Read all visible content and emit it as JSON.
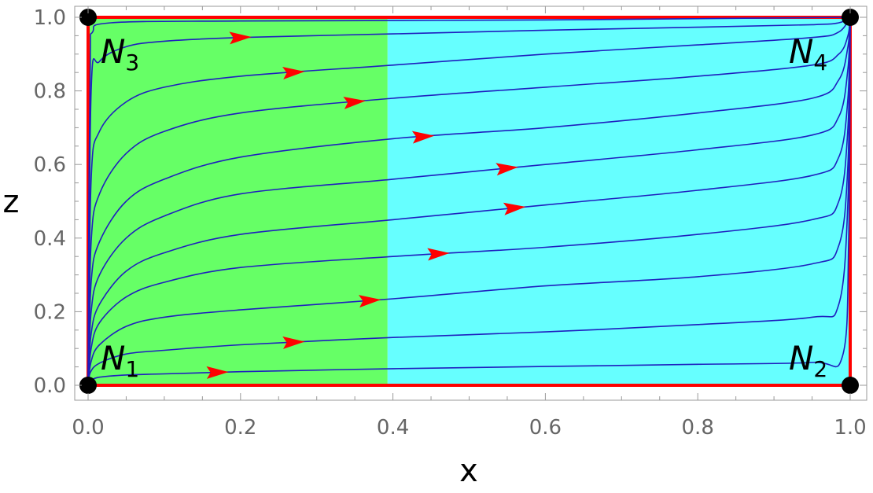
{
  "chart_data": {
    "type": "line",
    "title": "",
    "xlabel": "x",
    "ylabel": "z",
    "xlim": [
      0,
      1
    ],
    "ylim": [
      0,
      1
    ],
    "x_ticks": [
      "0.0",
      "0.2",
      "0.4",
      "0.6",
      "0.8",
      "1.0"
    ],
    "y_ticks": [
      "0.0",
      "0.2",
      "0.4",
      "0.6",
      "0.8",
      "1.0"
    ],
    "grid": false,
    "regions": [
      {
        "x_range": [
          0,
          0.393
        ],
        "color": "#66ff66"
      },
      {
        "x_range": [
          0.393,
          1
        ],
        "color": "#66ffff"
      }
    ],
    "boundary_color": "#ff0000",
    "trajectory_color": "#1f1fbf",
    "arrow_color": "#ff0000",
    "nodes": [
      {
        "name": "N",
        "sub": "1",
        "x": 0,
        "z": 0
      },
      {
        "name": "N",
        "sub": "2",
        "x": 1,
        "z": 0
      },
      {
        "name": "N",
        "sub": "3",
        "x": 0,
        "z": 1
      },
      {
        "name": "N",
        "sub": "4",
        "x": 1,
        "z": 1
      }
    ],
    "series": [
      {
        "values": [
          [
            0,
            0
          ],
          [
            0.003,
            0.012
          ],
          [
            0.015,
            0.022
          ],
          [
            0.05,
            0.028
          ],
          [
            0.1,
            0.031
          ],
          [
            0.2,
            0.037
          ],
          [
            0.4,
            0.045
          ],
          [
            0.6,
            0.051
          ],
          [
            0.8,
            0.057
          ],
          [
            0.95,
            0.062
          ],
          [
            0.99,
            0.08
          ],
          [
            0.998,
            0.4
          ],
          [
            1,
            1
          ]
        ],
        "arrow_x": 0.17
      },
      {
        "values": [
          [
            0,
            0
          ],
          [
            0.003,
            0.035
          ],
          [
            0.015,
            0.06
          ],
          [
            0.05,
            0.085
          ],
          [
            0.1,
            0.095
          ],
          [
            0.2,
            0.11
          ],
          [
            0.4,
            0.13
          ],
          [
            0.6,
            0.145
          ],
          [
            0.8,
            0.165
          ],
          [
            0.95,
            0.185
          ],
          [
            0.985,
            0.22
          ],
          [
            0.997,
            0.5
          ],
          [
            1,
            1
          ]
        ],
        "arrow_x": 0.27
      },
      {
        "values": [
          [
            0,
            0
          ],
          [
            0.004,
            0.065
          ],
          [
            0.015,
            0.11
          ],
          [
            0.05,
            0.16
          ],
          [
            0.1,
            0.185
          ],
          [
            0.2,
            0.205
          ],
          [
            0.4,
            0.235
          ],
          [
            0.6,
            0.27
          ],
          [
            0.8,
            0.295
          ],
          [
            0.95,
            0.33
          ],
          [
            0.985,
            0.38
          ],
          [
            0.997,
            0.6
          ],
          [
            1,
            1
          ]
        ],
        "arrow_x": 0.37
      },
      {
        "values": [
          [
            0,
            0
          ],
          [
            0.004,
            0.1
          ],
          [
            0.015,
            0.17
          ],
          [
            0.05,
            0.24
          ],
          [
            0.1,
            0.28
          ],
          [
            0.2,
            0.32
          ],
          [
            0.4,
            0.35
          ],
          [
            0.6,
            0.375
          ],
          [
            0.8,
            0.41
          ],
          [
            0.95,
            0.45
          ],
          [
            0.985,
            0.5
          ],
          [
            0.997,
            0.7
          ],
          [
            1,
            1
          ]
        ],
        "arrow_x": 0.46
      },
      {
        "values": [
          [
            0,
            0
          ],
          [
            0.004,
            0.14
          ],
          [
            0.015,
            0.22
          ],
          [
            0.05,
            0.31
          ],
          [
            0.1,
            0.36
          ],
          [
            0.2,
            0.41
          ],
          [
            0.4,
            0.45
          ],
          [
            0.6,
            0.49
          ],
          [
            0.8,
            0.53
          ],
          [
            0.95,
            0.57
          ],
          [
            0.985,
            0.62
          ],
          [
            0.997,
            0.78
          ],
          [
            1,
            1
          ]
        ],
        "arrow_x": 0.56
      },
      {
        "values": [
          [
            0,
            0
          ],
          [
            0.004,
            0.2
          ],
          [
            0.015,
            0.3
          ],
          [
            0.05,
            0.4
          ],
          [
            0.1,
            0.46
          ],
          [
            0.2,
            0.52
          ],
          [
            0.4,
            0.56
          ],
          [
            0.6,
            0.6
          ],
          [
            0.8,
            0.64
          ],
          [
            0.95,
            0.68
          ],
          [
            0.985,
            0.73
          ],
          [
            0.997,
            0.86
          ],
          [
            1,
            1
          ]
        ],
        "arrow_x": 0.55
      },
      {
        "values": [
          [
            0,
            0
          ],
          [
            0.004,
            0.28
          ],
          [
            0.015,
            0.39
          ],
          [
            0.05,
            0.5
          ],
          [
            0.1,
            0.56
          ],
          [
            0.2,
            0.62
          ],
          [
            0.4,
            0.67
          ],
          [
            0.6,
            0.7
          ],
          [
            0.8,
            0.74
          ],
          [
            0.95,
            0.78
          ],
          [
            0.985,
            0.83
          ],
          [
            0.997,
            0.92
          ],
          [
            1,
            1
          ]
        ],
        "arrow_x": 0.44
      },
      {
        "values": [
          [
            0,
            0
          ],
          [
            0.004,
            0.39
          ],
          [
            0.015,
            0.52
          ],
          [
            0.05,
            0.63
          ],
          [
            0.1,
            0.69
          ],
          [
            0.2,
            0.74
          ],
          [
            0.4,
            0.78
          ],
          [
            0.6,
            0.81
          ],
          [
            0.8,
            0.84
          ],
          [
            0.95,
            0.87
          ],
          [
            0.985,
            0.9
          ],
          [
            0.997,
            0.95
          ],
          [
            1,
            1
          ]
        ],
        "arrow_x": 0.35
      },
      {
        "values": [
          [
            0,
            0
          ],
          [
            0.004,
            0.56
          ],
          [
            0.015,
            0.69
          ],
          [
            0.05,
            0.77
          ],
          [
            0.1,
            0.81
          ],
          [
            0.2,
            0.84
          ],
          [
            0.4,
            0.87
          ],
          [
            0.6,
            0.9
          ],
          [
            0.8,
            0.925
          ],
          [
            0.95,
            0.945
          ],
          [
            0.985,
            0.96
          ],
          [
            1,
            1
          ]
        ],
        "arrow_x": 0.27
      },
      {
        "values": [
          [
            0,
            0
          ],
          [
            0.004,
            0.8
          ],
          [
            0.015,
            0.88
          ],
          [
            0.05,
            0.92
          ],
          [
            0.1,
            0.935
          ],
          [
            0.2,
            0.945
          ],
          [
            0.4,
            0.955
          ],
          [
            0.6,
            0.965
          ],
          [
            0.8,
            0.973
          ],
          [
            0.95,
            0.98
          ],
          [
            0.985,
            0.985
          ],
          [
            1,
            1
          ]
        ],
        "arrow_x": 0.2
      },
      {
        "values": [
          [
            0,
            0
          ],
          [
            0.001,
            0.5
          ],
          [
            0.003,
            0.9
          ],
          [
            0.006,
            0.96
          ],
          [
            0.03,
            0.985
          ],
          [
            0.2,
            0.99
          ],
          [
            0.6,
            0.993
          ],
          [
            1,
            1
          ]
        ],
        "arrow_x": -1
      }
    ]
  }
}
